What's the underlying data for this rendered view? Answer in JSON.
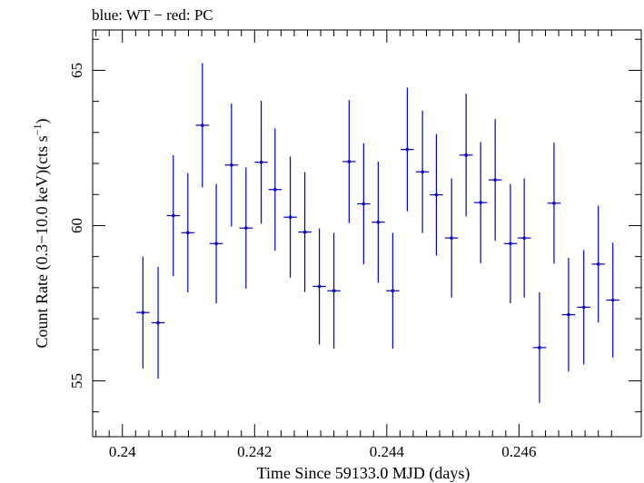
{
  "chart_data": {
    "type": "scatter",
    "title": "blue: WT − red: PC",
    "xlabel": "Time Since 59133.0 MJD (days)",
    "ylabel_main": "Count Rate (0.3−10.0 keV)(cts s",
    "ylabel_sup": "−1",
    "ylabel_close": ")",
    "xlim": [
      0.23955,
      0.24785
    ],
    "ylim": [
      53.2,
      66.3
    ],
    "xticks": [
      0.24,
      0.242,
      0.244,
      0.246
    ],
    "xtick_labels": [
      "0.24",
      "0.242",
      "0.244",
      "0.246"
    ],
    "yticks": [
      55,
      60,
      65
    ],
    "ytick_labels": [
      "55",
      "60",
      "65"
    ],
    "grid": false,
    "series": [
      {
        "color": "#0000cc",
        "xerr": 0.0001,
        "points": [
          {
            "x": 0.24031,
            "y": 57.2,
            "err": 1.8
          },
          {
            "x": 0.24054,
            "y": 56.87,
            "err": 1.8
          },
          {
            "x": 0.24077,
            "y": 60.32,
            "err": 1.95
          },
          {
            "x": 0.24099,
            "y": 59.77,
            "err": 1.92
          },
          {
            "x": 0.24121,
            "y": 63.23,
            "err": 2.0
          },
          {
            "x": 0.24142,
            "y": 59.42,
            "err": 1.92
          },
          {
            "x": 0.24165,
            "y": 61.95,
            "err": 1.98
          },
          {
            "x": 0.24187,
            "y": 59.92,
            "err": 1.95
          },
          {
            "x": 0.2421,
            "y": 62.04,
            "err": 1.98
          },
          {
            "x": 0.24231,
            "y": 61.16,
            "err": 1.97
          },
          {
            "x": 0.24254,
            "y": 60.27,
            "err": 1.95
          },
          {
            "x": 0.24276,
            "y": 59.79,
            "err": 1.93
          },
          {
            "x": 0.24298,
            "y": 58.04,
            "err": 1.87
          },
          {
            "x": 0.2432,
            "y": 57.9,
            "err": 1.86
          },
          {
            "x": 0.24343,
            "y": 62.06,
            "err": 1.98
          },
          {
            "x": 0.24365,
            "y": 60.7,
            "err": 1.95
          },
          {
            "x": 0.24387,
            "y": 60.11,
            "err": 1.95
          },
          {
            "x": 0.24409,
            "y": 57.9,
            "err": 1.86
          },
          {
            "x": 0.24431,
            "y": 62.45,
            "err": 1.99
          },
          {
            "x": 0.24454,
            "y": 61.73,
            "err": 1.97
          },
          {
            "x": 0.24475,
            "y": 60.99,
            "err": 1.96
          },
          {
            "x": 0.24498,
            "y": 59.6,
            "err": 1.92
          },
          {
            "x": 0.2452,
            "y": 62.27,
            "err": 1.98
          },
          {
            "x": 0.24542,
            "y": 60.74,
            "err": 1.95
          },
          {
            "x": 0.24564,
            "y": 61.47,
            "err": 1.96
          },
          {
            "x": 0.24587,
            "y": 59.42,
            "err": 1.92
          },
          {
            "x": 0.24608,
            "y": 59.6,
            "err": 1.92
          },
          {
            "x": 0.24631,
            "y": 56.07,
            "err": 1.78
          },
          {
            "x": 0.24653,
            "y": 60.72,
            "err": 1.95
          },
          {
            "x": 0.24675,
            "y": 57.13,
            "err": 1.83
          },
          {
            "x": 0.24698,
            "y": 57.37,
            "err": 1.84
          },
          {
            "x": 0.2472,
            "y": 58.76,
            "err": 1.88
          },
          {
            "x": 0.24742,
            "y": 57.6,
            "err": 1.85
          }
        ]
      }
    ]
  }
}
